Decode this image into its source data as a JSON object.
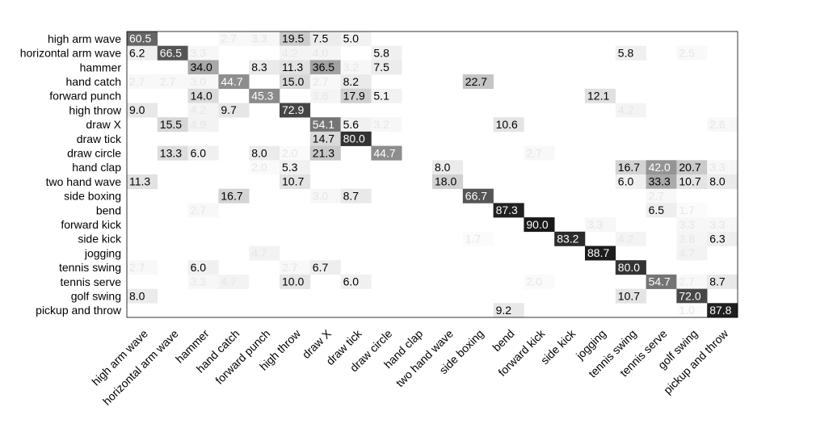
{
  "chart_data": {
    "type": "heatmap",
    "title": "",
    "xlabel": "",
    "ylabel": "",
    "row_labels": [
      "high arm wave",
      "horizontal arm wave",
      "hammer",
      "hand catch",
      "forward punch",
      "high throw",
      "draw X",
      "draw tick",
      "draw circle",
      "hand clap",
      "two hand wave",
      "side boxing",
      "bend",
      "forward kick",
      "side kick",
      "jogging",
      "tennis swing",
      "tennis serve",
      "golf swing",
      "pickup and throw"
    ],
    "col_labels": [
      "high arm wave",
      "horizontal arm wave",
      "hammer",
      "hand catch",
      "forward punch",
      "high throw",
      "draw X",
      "draw tick",
      "draw circle",
      "hand clap",
      "two hand wave",
      "side boxing",
      "bend",
      "forward kick",
      "side kick",
      "jogging",
      "tennis swing",
      "tennis serve",
      "golf swing",
      "pickup and throw"
    ],
    "values": [
      [
        60.5,
        0,
        0,
        2.7,
        3.3,
        19.5,
        7.5,
        5.0,
        0,
        0,
        0,
        0,
        0,
        0,
        0,
        0,
        0,
        0,
        0,
        0
      ],
      [
        6.2,
        66.5,
        3.3,
        0,
        0,
        4.2,
        4.0,
        0,
        5.8,
        0,
        0,
        0,
        0,
        0,
        0,
        0,
        5.8,
        0,
        2.5,
        0
      ],
      [
        0,
        0,
        34.0,
        0,
        8.3,
        11.3,
        36.5,
        3.2,
        7.5,
        0,
        0,
        0,
        0,
        0,
        0,
        0,
        0,
        0,
        0,
        0
      ],
      [
        2.7,
        2.7,
        3.0,
        44.7,
        0,
        15.0,
        2.7,
        8.2,
        0,
        0,
        0,
        22.7,
        0,
        0,
        0,
        0,
        0,
        0,
        0,
        0
      ],
      [
        0,
        0,
        14.0,
        0,
        45.3,
        0,
        3.8,
        17.9,
        5.1,
        0,
        0,
        0,
        0,
        0,
        0,
        12.1,
        0,
        0,
        0,
        0
      ],
      [
        9.0,
        0,
        4.2,
        9.7,
        0,
        72.9,
        0,
        0,
        0,
        0,
        0,
        0,
        0,
        0,
        0,
        0,
        4.2,
        0,
        0,
        0
      ],
      [
        0,
        15.5,
        4.9,
        0,
        0,
        0,
        54.1,
        5.6,
        3.2,
        0,
        0,
        0,
        10.6,
        0,
        0,
        0,
        0,
        0,
        0,
        2.6
      ],
      [
        0,
        0,
        0,
        0,
        0,
        0,
        14.7,
        80.0,
        0,
        0,
        0,
        0,
        0,
        0,
        0,
        0,
        0,
        0,
        0,
        0
      ],
      [
        0,
        13.3,
        6.0,
        0,
        8.0,
        2.0,
        21.3,
        0,
        44.7,
        0,
        0,
        0,
        0,
        2.7,
        0,
        0,
        0,
        0,
        0,
        0
      ],
      [
        0,
        0,
        0,
        0,
        2.0,
        5.3,
        0,
        0,
        0,
        0,
        8.0,
        0,
        0,
        0,
        0,
        0,
        16.7,
        42.0,
        20.7,
        3.3
      ],
      [
        11.3,
        0,
        0,
        0,
        0,
        10.7,
        0,
        0,
        0,
        0,
        18.0,
        0,
        0,
        0,
        0,
        0,
        6.0,
        33.3,
        10.7,
        8.0
      ],
      [
        0,
        0,
        0,
        16.7,
        0,
        0,
        3.0,
        8.7,
        0,
        0,
        0,
        66.7,
        0,
        0,
        0,
        0,
        0,
        2.7,
        0,
        0
      ],
      [
        0,
        0,
        2.7,
        0,
        0,
        0,
        0,
        0,
        0,
        0,
        0,
        0,
        87.3,
        0,
        0,
        0,
        0,
        6.5,
        1.7,
        0
      ],
      [
        0,
        0,
        0,
        0,
        0,
        0,
        0,
        0,
        0,
        0,
        0,
        0,
        0,
        90.0,
        0,
        3.3,
        0,
        0,
        3.3,
        3.3
      ],
      [
        0,
        0,
        0,
        0,
        0,
        0,
        0,
        0,
        0,
        0,
        0,
        1.7,
        0,
        0,
        83.2,
        0,
        4.2,
        0,
        3.8,
        6.3
      ],
      [
        0,
        0,
        0,
        0,
        4.7,
        0,
        0,
        0,
        0,
        0,
        0,
        0,
        0,
        0,
        0,
        88.7,
        0,
        0,
        4.7,
        0
      ],
      [
        2.7,
        0,
        6.0,
        0,
        0,
        2.7,
        6.7,
        0,
        0,
        0,
        0,
        0,
        0,
        0,
        0,
        0,
        80.0,
        0,
        0,
        0
      ],
      [
        0,
        0,
        3.3,
        4.7,
        0,
        10.0,
        0,
        6.0,
        0,
        0,
        0,
        0,
        0,
        2.0,
        0,
        0,
        0,
        54.7,
        2.7,
        8.7
      ],
      [
        8.0,
        0,
        0,
        0,
        0,
        0,
        0,
        0,
        0,
        0,
        0,
        0,
        0,
        0,
        0,
        0,
        10.7,
        0,
        72.0,
        0
      ],
      [
        0,
        0,
        0,
        0,
        0,
        0,
        0,
        0,
        0,
        0,
        0,
        0,
        9.2,
        0,
        0,
        0,
        0,
        0,
        1.0,
        87.8
      ]
    ],
    "value_range": [
      0,
      100
    ],
    "colormap": "grayscale-inverted",
    "grid": false,
    "legend": "none"
  }
}
